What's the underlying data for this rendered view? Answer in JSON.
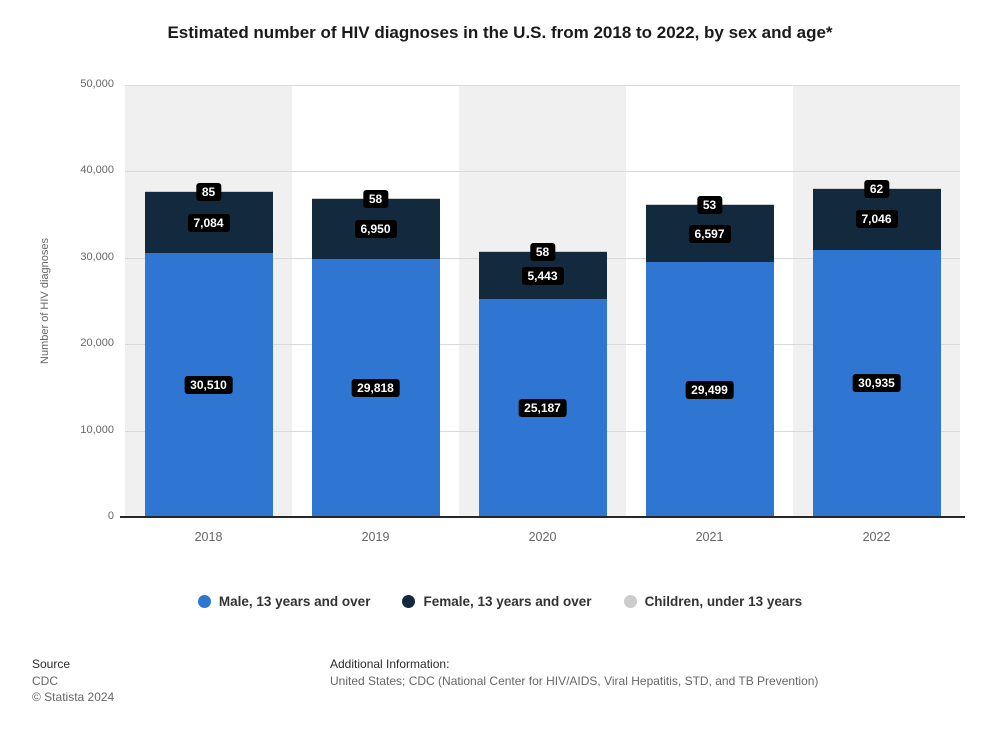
{
  "title": "Estimated number of HIV diagnoses in the U.S. from 2018 to 2022, by sex and age*",
  "chart_data": {
    "type": "bar",
    "stacked": true,
    "title": "Estimated number of HIV diagnoses in the U.S. from 2018 to 2022, by sex and age*",
    "categories": [
      "2018",
      "2019",
      "2020",
      "2021",
      "2022"
    ],
    "series": [
      {
        "name": "Male, 13 years and over",
        "color": "#2e76d1",
        "values": [
          30510,
          29818,
          25187,
          29499,
          30935
        ],
        "labels": [
          "30,510",
          "29,818",
          "25,187",
          "29,499",
          "30,935"
        ]
      },
      {
        "name": "Female, 13 years and over",
        "color": "#13293e",
        "values": [
          7084,
          6950,
          5443,
          6597,
          7046
        ],
        "labels": [
          "7,084",
          "6,950",
          "5,443",
          "6,597",
          "7,046"
        ]
      },
      {
        "name": "Children, under 13 years",
        "color": "#cccccc",
        "values": [
          85,
          58,
          58,
          53,
          62
        ],
        "labels": [
          "85",
          "58",
          "58",
          "53",
          "62"
        ]
      }
    ],
    "xlabel": "",
    "ylabel": "Number of HIV diagnoses",
    "ylim": [
      0,
      50000
    ],
    "ytick_values": [
      0,
      10000,
      20000,
      30000,
      40000,
      50000
    ],
    "yticks": [
      "0",
      "10,000",
      "20,000",
      "30,000",
      "40,000",
      "50,000"
    ],
    "grid": true,
    "legend_position": "bottom"
  },
  "footer": {
    "source_label": "Source",
    "source_value": "CDC",
    "copyright": "© Statista 2024",
    "additional_label": "Additional Information:",
    "additional_value": "United States; CDC (National Center for HIV/AIDS, Viral Hepatitis, STD, and TB Prevention)"
  }
}
